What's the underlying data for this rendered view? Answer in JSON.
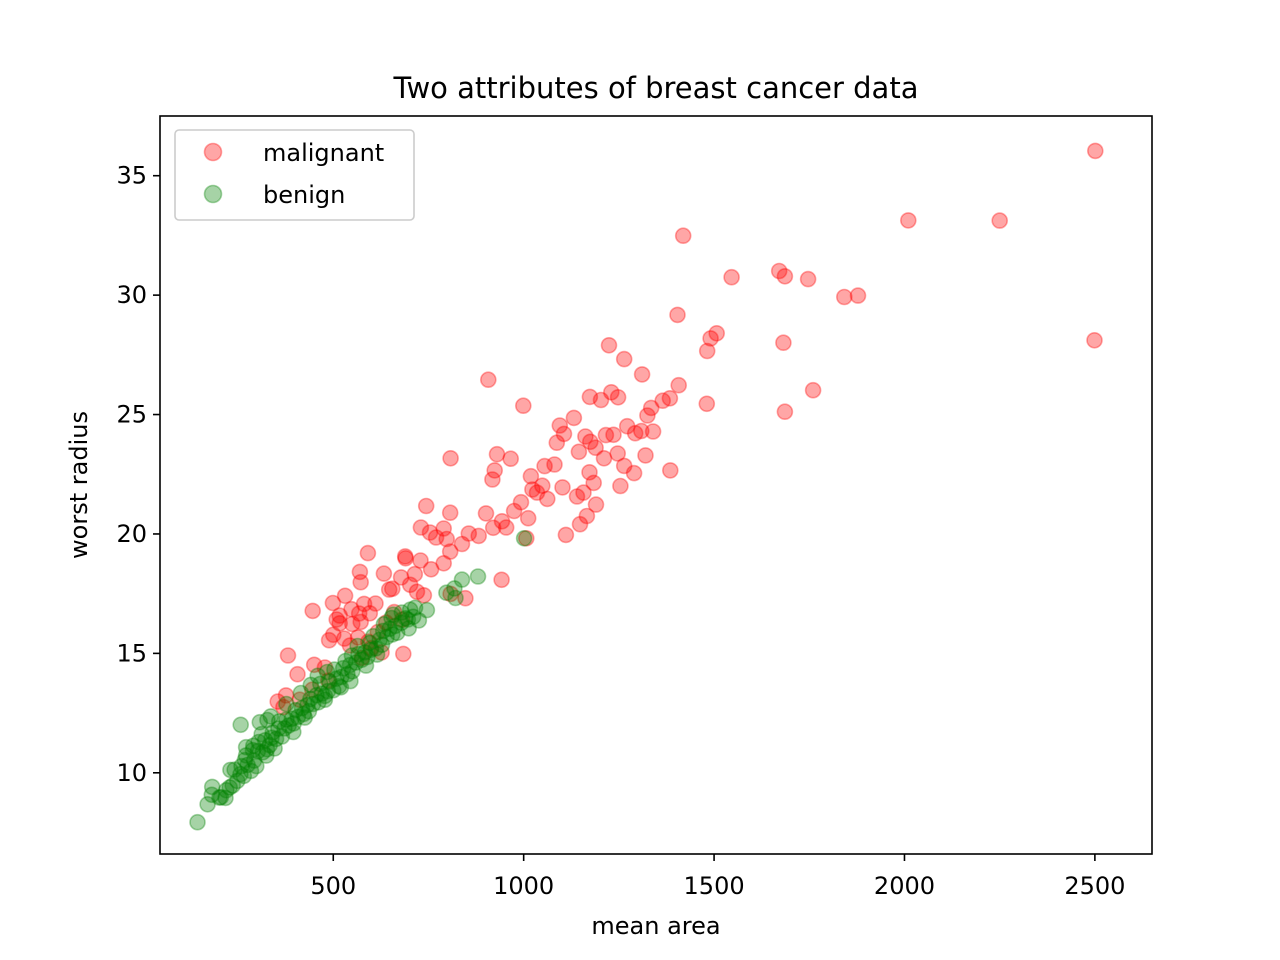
{
  "chart_data": {
    "type": "scatter",
    "title": "Two attributes of breast cancer data",
    "xlabel": "mean area",
    "ylabel": "worst radius",
    "xlim": [
      45,
      2650
    ],
    "ylim": [
      6.6,
      37.5
    ],
    "xticks": [
      500,
      1000,
      1500,
      2000,
      2500
    ],
    "yticks": [
      10,
      15,
      20,
      25,
      30,
      35
    ],
    "xtick_labels": [
      "500",
      "1000",
      "1500",
      "2000",
      "2500"
    ],
    "ytick_labels": [
      "10",
      "15",
      "20",
      "25",
      "30",
      "35"
    ],
    "grid": false,
    "legend_position": "upper-left",
    "series": [
      {
        "name": "malignant",
        "color": "#ff0000",
        "points": [
          [
            2501,
            36.04
          ],
          [
            2010,
            33.13
          ],
          [
            2250,
            33.12
          ],
          [
            2499,
            28.11
          ],
          [
            1419,
            32.49
          ],
          [
            1671,
            31.01
          ],
          [
            1686,
            30.79
          ],
          [
            1747,
            30.67
          ],
          [
            1546,
            30.75
          ],
          [
            1842,
            29.92
          ],
          [
            1878,
            29.98
          ],
          [
            1404,
            29.17
          ],
          [
            1507,
            28.4
          ],
          [
            1491,
            28.19
          ],
          [
            1682,
            28.01
          ],
          [
            1482,
            27.66
          ],
          [
            1264,
            27.32
          ],
          [
            1224,
            27.9
          ],
          [
            1311,
            26.68
          ],
          [
            1407,
            26.23
          ],
          [
            907,
            26.46
          ],
          [
            1384,
            25.68
          ],
          [
            1365,
            25.58
          ],
          [
            1760,
            26.02
          ],
          [
            1481,
            25.45
          ],
          [
            1686,
            25.12
          ],
          [
            1174,
            25.74
          ],
          [
            1248,
            25.72
          ],
          [
            1230,
            25.93
          ],
          [
            1203,
            25.61
          ],
          [
            1335,
            25.28
          ],
          [
            1325,
            24.96
          ],
          [
            1095,
            24.54
          ],
          [
            1162,
            24.08
          ],
          [
            1132,
            24.86
          ],
          [
            999,
            25.37
          ],
          [
            1293,
            24.22
          ],
          [
            1309,
            24.31
          ],
          [
            1340,
            24.29
          ],
          [
            1272,
            24.51
          ],
          [
            1236,
            24.15
          ],
          [
            1216,
            24.14
          ],
          [
            1145,
            23.44
          ],
          [
            1175,
            23.86
          ],
          [
            1189,
            23.61
          ],
          [
            1106,
            24.19
          ],
          [
            1087,
            23.82
          ],
          [
            1320,
            23.29
          ],
          [
            1385,
            22.66
          ],
          [
            1264,
            22.85
          ],
          [
            1211,
            23.17
          ],
          [
            1173,
            22.58
          ],
          [
            1247,
            23.37
          ],
          [
            1290,
            22.55
          ],
          [
            1081,
            22.91
          ],
          [
            1055,
            22.84
          ],
          [
            1019,
            22.42
          ],
          [
            1049,
            22.02
          ],
          [
            966,
            23.15
          ],
          [
            930,
            23.34
          ],
          [
            924,
            22.66
          ],
          [
            918,
            22.28
          ],
          [
            1035,
            21.73
          ],
          [
            1062,
            21.47
          ],
          [
            1102,
            21.95
          ],
          [
            1140,
            21.57
          ],
          [
            1184,
            22.14
          ],
          [
            1254,
            22.01
          ],
          [
            1190,
            21.23
          ],
          [
            1157,
            21.73
          ],
          [
            808,
            23.17
          ],
          [
            856,
            20.02
          ],
          [
            901,
            20.86
          ],
          [
            943,
            20.53
          ],
          [
            975,
            20.96
          ],
          [
            993,
            21.33
          ],
          [
            1023,
            21.86
          ],
          [
            1012,
            20.66
          ],
          [
            1148,
            20.41
          ],
          [
            1166,
            20.75
          ],
          [
            1111,
            19.96
          ],
          [
            1007,
            19.82
          ],
          [
            954,
            20.27
          ],
          [
            920,
            20.26
          ],
          [
            882,
            19.92
          ],
          [
            838,
            19.58
          ],
          [
            790,
            20.23
          ],
          [
            754,
            20.06
          ],
          [
            730,
            20.27
          ],
          [
            770,
            19.85
          ],
          [
            798,
            19.79
          ],
          [
            807,
            20.89
          ],
          [
            744,
            21.17
          ],
          [
            807,
            19.26
          ],
          [
            790,
            18.77
          ],
          [
            757,
            18.52
          ],
          [
            729,
            18.89
          ],
          [
            714,
            18.32
          ],
          [
            690,
            18.98
          ],
          [
            678,
            18.18
          ],
          [
            702,
            17.87
          ],
          [
            720,
            17.58
          ],
          [
            738,
            17.43
          ],
          [
            808,
            17.49
          ],
          [
            847,
            17.31
          ],
          [
            942,
            18.08
          ],
          [
            591,
            19.2
          ],
          [
            689,
            19.06
          ],
          [
            570,
            18.41
          ],
          [
            633,
            18.34
          ],
          [
            655,
            17.71
          ],
          [
            572,
            17.98
          ],
          [
            531,
            17.41
          ],
          [
            647,
            17.67
          ],
          [
            611,
            17.09
          ],
          [
            581,
            17.07
          ],
          [
            596,
            16.68
          ],
          [
            499,
            17.11
          ],
          [
            568,
            16.67
          ],
          [
            548,
            16.85
          ],
          [
            446,
            16.78
          ],
          [
            509,
            16.42
          ],
          [
            517,
            16.58
          ],
          [
            550,
            16.23
          ],
          [
            517,
            16.26
          ],
          [
            572,
            16.32
          ],
          [
            639,
            16.29
          ],
          [
            660,
            16.73
          ],
          [
            681,
            16.41
          ],
          [
            617,
            15.89
          ],
          [
            592,
            15.49
          ],
          [
            529,
            15.62
          ],
          [
            489,
            15.55
          ],
          [
            544,
            15.33
          ],
          [
            500,
            15.78
          ],
          [
            565,
            15.67
          ],
          [
            599,
            15.22
          ],
          [
            575,
            14.81
          ],
          [
            627,
            15.04
          ],
          [
            684,
            14.98
          ],
          [
            381,
            14.91
          ],
          [
            450,
            14.52
          ],
          [
            478,
            14.41
          ],
          [
            406,
            14.13
          ],
          [
            487,
            13.86
          ],
          [
            445,
            13.48
          ],
          [
            376,
            13.24
          ],
          [
            412,
            13.06
          ],
          [
            354,
            12.98
          ],
          [
            369,
            12.75
          ]
        ]
      },
      {
        "name": "benign",
        "color": "#008000",
        "points": [
          [
            143.5,
            7.93
          ],
          [
            170,
            8.68
          ],
          [
            181,
            9.08
          ],
          [
            182,
            9.41
          ],
          [
            201,
            8.96
          ],
          [
            217,
            8.95
          ],
          [
            228,
            9.39
          ],
          [
            236,
            9.47
          ],
          [
            248,
            9.66
          ],
          [
            256,
            9.94
          ],
          [
            241,
            10.13
          ],
          [
            259,
            10.28
          ],
          [
            268,
            10.53
          ],
          [
            275,
            10.33
          ],
          [
            284,
            10.08
          ],
          [
            292,
            10.51
          ],
          [
            271,
            10.73
          ],
          [
            289,
            10.95
          ],
          [
            302,
            10.91
          ],
          [
            315,
            10.86
          ],
          [
            326,
            10.99
          ],
          [
            333,
            11.16
          ],
          [
            304,
            11.29
          ],
          [
            321,
            11.36
          ],
          [
            338,
            11.47
          ],
          [
            350,
            11.42
          ],
          [
            365,
            11.52
          ],
          [
            312,
            11.62
          ],
          [
            341,
            11.69
          ],
          [
            356,
            11.85
          ],
          [
            372,
            11.86
          ],
          [
            383,
            11.98
          ],
          [
            396,
            12.07
          ],
          [
            358,
            12.15
          ],
          [
            377,
            12.23
          ],
          [
            391,
            12.26
          ],
          [
            407,
            12.34
          ],
          [
            422,
            12.46
          ],
          [
            436,
            12.58
          ],
          [
            401,
            12.62
          ],
          [
            418,
            12.71
          ],
          [
            432,
            12.84
          ],
          [
            447,
            12.88
          ],
          [
            461,
            12.95
          ],
          [
            478,
            13.06
          ],
          [
            440,
            13.09
          ],
          [
            456,
            13.25
          ],
          [
            470,
            13.31
          ],
          [
            486,
            13.42
          ],
          [
            500,
            13.46
          ],
          [
            515,
            13.63
          ],
          [
            466,
            13.72
          ],
          [
            490,
            13.82
          ],
          [
            508,
            13.94
          ],
          [
            521,
            14.01
          ],
          [
            537,
            14.13
          ],
          [
            550,
            14.25
          ],
          [
            503,
            14.32
          ],
          [
            526,
            14.38
          ],
          [
            544,
            14.51
          ],
          [
            560,
            14.62
          ],
          [
            575,
            14.73
          ],
          [
            590,
            14.85
          ],
          [
            549,
            14.91
          ],
          [
            566,
            14.97
          ],
          [
            583,
            15.04
          ],
          [
            599,
            15.15
          ],
          [
            612,
            15.21
          ],
          [
            628,
            15.36
          ],
          [
            596,
            15.44
          ],
          [
            622,
            15.57
          ],
          [
            640,
            15.68
          ],
          [
            655,
            15.79
          ],
          [
            668,
            15.86
          ],
          [
            631,
            15.94
          ],
          [
            648,
            16.03
          ],
          [
            663,
            16.15
          ],
          [
            679,
            16.28
          ],
          [
            696,
            16.42
          ],
          [
            710,
            16.53
          ],
          [
            657,
            16.62
          ],
          [
            680,
            16.71
          ],
          [
            702,
            16.83
          ],
          [
            715,
            16.91
          ],
          [
            690,
            16.47
          ],
          [
            818,
            17.72
          ],
          [
            838,
            18.09
          ],
          [
            880,
            18.22
          ],
          [
            821,
            17.32
          ],
          [
            797,
            17.54
          ],
          [
            1001,
            19.82
          ],
          [
            257,
            12.01
          ],
          [
            307,
            12.12
          ],
          [
            327,
            12.21
          ],
          [
            271,
            11.07
          ],
          [
            230,
            10.12
          ],
          [
            290,
            11.13
          ],
          [
            336,
            12.36
          ],
          [
            377,
            12.88
          ],
          [
            415,
            13.34
          ],
          [
            441,
            13.68
          ],
          [
            459,
            14.06
          ],
          [
            484,
            14.22
          ],
          [
            532,
            14.68
          ],
          [
            564,
            15.31
          ],
          [
            605,
            15.72
          ],
          [
            633,
            16.22
          ],
          [
            653,
            16.48
          ],
          [
            725,
            16.38
          ],
          [
            698,
            16.05
          ],
          [
            746,
            16.81
          ],
          [
            615,
            14.95
          ],
          [
            586,
            14.49
          ],
          [
            545,
            13.84
          ],
          [
            520,
            13.58
          ],
          [
            478,
            13.22
          ],
          [
            425,
            12.31
          ],
          [
            395,
            11.71
          ],
          [
            346,
            11.02
          ],
          [
            324,
            10.72
          ],
          [
            298,
            10.28
          ],
          [
            265,
            9.87
          ],
          [
            219,
            9.27
          ],
          [
            205,
            8.98
          ]
        ]
      }
    ]
  }
}
